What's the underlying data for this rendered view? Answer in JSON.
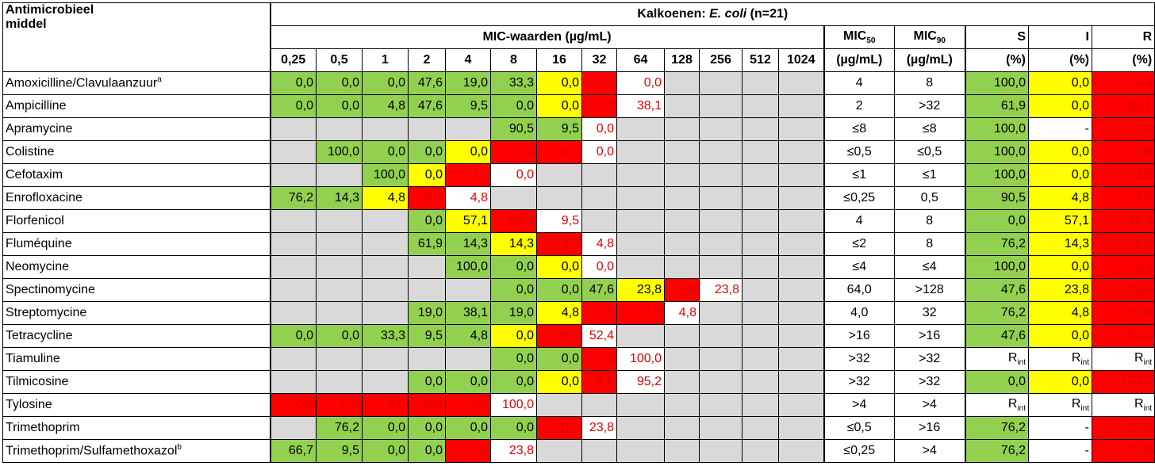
{
  "header": {
    "antimicrobial_line1": "Antimicrobieel",
    "antimicrobial_line2": "middel",
    "title_prefix": "Kalkoenen: ",
    "title_species": "E. coli",
    "title_suffix": " (n=21)",
    "mic_values_label": "MIC-waarden (µg/mL)",
    "mic50_label": "MIC",
    "mic50_sub": "50",
    "mic90_label": "MIC",
    "mic90_sub": "90",
    "unit": "(µg/mL)",
    "s_label": "S",
    "i_label": "I",
    "r_label": "R",
    "pct": "(%)",
    "concentrations": [
      "0,25",
      "0,5",
      "1",
      "2",
      "4",
      "8",
      "16",
      "32",
      "64",
      "128",
      "256",
      "512",
      "1024"
    ]
  },
  "rows": [
    {
      "name": "Amoxicilline/Clavulaanzuur",
      "sup": "a",
      "cells": [
        [
          "0,0",
          "g"
        ],
        [
          "0,0",
          "g"
        ],
        [
          "0,0",
          "g"
        ],
        [
          "47,6",
          "g"
        ],
        [
          "19,0",
          "g"
        ],
        [
          "33,3",
          "g"
        ],
        [
          "0,0",
          "y"
        ],
        [
          "0,0",
          "r"
        ],
        [
          "0,0",
          "wr"
        ],
        [
          "",
          "gr"
        ],
        [
          "",
          "gr"
        ],
        [
          "",
          "gr"
        ],
        [
          "",
          "gr"
        ]
      ],
      "mic50": "4",
      "mic90": "8",
      "s": [
        "100,0",
        "g"
      ],
      "i": [
        "0,0",
        "y"
      ],
      "r": [
        "0,0",
        "r"
      ]
    },
    {
      "name": "Ampicilline",
      "sup": "",
      "cells": [
        [
          "0,0",
          "g"
        ],
        [
          "0,0",
          "g"
        ],
        [
          "4,8",
          "g"
        ],
        [
          "47,6",
          "g"
        ],
        [
          "9,5",
          "g"
        ],
        [
          "0,0",
          "g"
        ],
        [
          "0,0",
          "y"
        ],
        [
          "0,0",
          "r"
        ],
        [
          "38,1",
          "wr"
        ],
        [
          "",
          "gr"
        ],
        [
          "",
          "gr"
        ],
        [
          "",
          "gr"
        ],
        [
          "",
          "gr"
        ]
      ],
      "mic50": "2",
      "mic90": ">32",
      "s": [
        "61,9",
        "g"
      ],
      "i": [
        "0,0",
        "y"
      ],
      "r": [
        "38,1",
        "r"
      ]
    },
    {
      "name": "Apramycine",
      "sup": "",
      "cells": [
        [
          "",
          "gr"
        ],
        [
          "",
          "gr"
        ],
        [
          "",
          "gr"
        ],
        [
          "",
          "gr"
        ],
        [
          "",
          "gr"
        ],
        [
          "90,5",
          "g"
        ],
        [
          "9,5",
          "g"
        ],
        [
          "0,0",
          "wr"
        ],
        [
          "",
          "gr"
        ],
        [
          "",
          "gr"
        ],
        [
          "",
          "gr"
        ],
        [
          "",
          "gr"
        ],
        [
          "",
          "gr"
        ]
      ],
      "mic50": "≤8",
      "mic90": "≤8",
      "s": [
        "100,0",
        "g"
      ],
      "i": [
        "-",
        "w"
      ],
      "r": [
        "0,0",
        "r"
      ]
    },
    {
      "name": "Colistine",
      "sup": "",
      "cells": [
        [
          "",
          "gr"
        ],
        [
          "100,0",
          "g"
        ],
        [
          "0,0",
          "g"
        ],
        [
          "0,0",
          "g"
        ],
        [
          "0,0",
          "y"
        ],
        [
          "0,0",
          "r"
        ],
        [
          "0,0",
          "r"
        ],
        [
          "0,0",
          "wr"
        ],
        [
          "",
          "gr"
        ],
        [
          "",
          "gr"
        ],
        [
          "",
          "gr"
        ],
        [
          "",
          "gr"
        ],
        [
          "",
          "gr"
        ]
      ],
      "mic50": "≤0,5",
      "mic90": "≤0,5",
      "s": [
        "100,0",
        "g"
      ],
      "i": [
        "0,0",
        "y"
      ],
      "r": [
        "0,0",
        "r"
      ]
    },
    {
      "name": "Cefotaxim",
      "sup": "",
      "cells": [
        [
          "",
          "gr"
        ],
        [
          "",
          "gr"
        ],
        [
          "100,0",
          "g"
        ],
        [
          "0,0",
          "y"
        ],
        [
          "0,0",
          "r"
        ],
        [
          "0,0",
          "wr"
        ],
        [
          "",
          "gr"
        ],
        [
          "",
          "gr"
        ],
        [
          "",
          "gr"
        ],
        [
          "",
          "gr"
        ],
        [
          "",
          "gr"
        ],
        [
          "",
          "gr"
        ],
        [
          "",
          "gr"
        ]
      ],
      "mic50": "≤1",
      "mic90": "≤1",
      "s": [
        "100,0",
        "g"
      ],
      "i": [
        "0,0",
        "y"
      ],
      "r": [
        "0,0",
        "r"
      ]
    },
    {
      "name": "Enrofloxacine",
      "sup": "",
      "cells": [
        [
          "76,2",
          "g"
        ],
        [
          "14,3",
          "g"
        ],
        [
          "4,8",
          "y"
        ],
        [
          "0,0",
          "r"
        ],
        [
          "4,8",
          "wr"
        ],
        [
          "",
          "gr"
        ],
        [
          "",
          "gr"
        ],
        [
          "",
          "gr"
        ],
        [
          "",
          "gr"
        ],
        [
          "",
          "gr"
        ],
        [
          "",
          "gr"
        ],
        [
          "",
          "gr"
        ],
        [
          "",
          "gr"
        ]
      ],
      "mic50": "≤0,25",
      "mic90": "0,5",
      "s": [
        "90,5",
        "g"
      ],
      "i": [
        "4,8",
        "y"
      ],
      "r": [
        "4,8",
        "r"
      ]
    },
    {
      "name": "Florfenicol",
      "sup": "",
      "cells": [
        [
          "",
          "gr"
        ],
        [
          "",
          "gr"
        ],
        [
          "",
          "gr"
        ],
        [
          "0,0",
          "g"
        ],
        [
          "57,1",
          "y"
        ],
        [
          "33,3",
          "r"
        ],
        [
          "9,5",
          "wr"
        ],
        [
          "",
          "gr"
        ],
        [
          "",
          "gr"
        ],
        [
          "",
          "gr"
        ],
        [
          "",
          "gr"
        ],
        [
          "",
          "gr"
        ],
        [
          "",
          "gr"
        ]
      ],
      "mic50": "4",
      "mic90": "8",
      "s": [
        "0,0",
        "g"
      ],
      "i": [
        "57,1",
        "y"
      ],
      "r": [
        "42,9",
        "r"
      ]
    },
    {
      "name": "Fluméquine",
      "sup": "",
      "cells": [
        [
          "",
          "gr"
        ],
        [
          "",
          "gr"
        ],
        [
          "",
          "gr"
        ],
        [
          "61,9",
          "g"
        ],
        [
          "14,3",
          "g"
        ],
        [
          "14,3",
          "y"
        ],
        [
          "4,8",
          "r"
        ],
        [
          "4,8",
          "wr"
        ],
        [
          "",
          "gr"
        ],
        [
          "",
          "gr"
        ],
        [
          "",
          "gr"
        ],
        [
          "",
          "gr"
        ],
        [
          "",
          "gr"
        ]
      ],
      "mic50": "≤2",
      "mic90": "8",
      "s": [
        "76,2",
        "g"
      ],
      "i": [
        "14,3",
        "y"
      ],
      "r": [
        "9,5",
        "r"
      ]
    },
    {
      "name": "Neomycine",
      "sup": "",
      "cells": [
        [
          "",
          "gr"
        ],
        [
          "",
          "gr"
        ],
        [
          "",
          "gr"
        ],
        [
          "",
          "gr"
        ],
        [
          "100,0",
          "g"
        ],
        [
          "0,0",
          "g"
        ],
        [
          "0,0",
          "y"
        ],
        [
          "0,0",
          "wr"
        ],
        [
          "",
          "gr"
        ],
        [
          "",
          "gr"
        ],
        [
          "",
          "gr"
        ],
        [
          "",
          "gr"
        ],
        [
          "",
          "gr"
        ]
      ],
      "mic50": "≤4",
      "mic90": "≤4",
      "s": [
        "100,0",
        "g"
      ],
      "i": [
        "0,0",
        "y"
      ],
      "r": [
        "0,0",
        "r"
      ]
    },
    {
      "name": "Spectinomycine",
      "sup": "",
      "cells": [
        [
          "",
          "gr"
        ],
        [
          "",
          "gr"
        ],
        [
          "",
          "gr"
        ],
        [
          "",
          "gr"
        ],
        [
          "",
          "gr"
        ],
        [
          "0,0",
          "g"
        ],
        [
          "0,0",
          "g"
        ],
        [
          "47,6",
          "g"
        ],
        [
          "23,8",
          "y"
        ],
        [
          "4,8",
          "r"
        ],
        [
          "23,8",
          "wr"
        ],
        [
          "",
          "gr"
        ],
        [
          "",
          "gr"
        ]
      ],
      "mic50": "64,0",
      "mic90": ">128",
      "s": [
        "47,6",
        "g"
      ],
      "i": [
        "23,8",
        "y"
      ],
      "r": [
        "28,6",
        "r"
      ]
    },
    {
      "name": "Streptomycine",
      "sup": "",
      "cells": [
        [
          "",
          "gr"
        ],
        [
          "",
          "gr"
        ],
        [
          "",
          "gr"
        ],
        [
          "19,0",
          "g"
        ],
        [
          "38,1",
          "g"
        ],
        [
          "19,0",
          "g"
        ],
        [
          "4,8",
          "y"
        ],
        [
          "9,5",
          "r"
        ],
        [
          "4,8",
          "r"
        ],
        [
          "4,8",
          "wr"
        ],
        [
          "",
          "gr"
        ],
        [
          "",
          "gr"
        ],
        [
          "",
          "gr"
        ]
      ],
      "mic50": "4,0",
      "mic90": "32",
      "s": [
        "76,2",
        "g"
      ],
      "i": [
        "4,8",
        "y"
      ],
      "r": [
        "19,0",
        "r"
      ]
    },
    {
      "name": "Tetracycline",
      "sup": "",
      "cells": [
        [
          "0,0",
          "g"
        ],
        [
          "0,0",
          "g"
        ],
        [
          "33,3",
          "g"
        ],
        [
          "9,5",
          "g"
        ],
        [
          "4,8",
          "g"
        ],
        [
          "0,0",
          "y"
        ],
        [
          "0,0",
          "r"
        ],
        [
          "52,4",
          "wr"
        ],
        [
          "",
          "gr"
        ],
        [
          "",
          "gr"
        ],
        [
          "",
          "gr"
        ],
        [
          "",
          "gr"
        ],
        [
          "",
          "gr"
        ]
      ],
      "mic50": ">16",
      "mic90": ">16",
      "s": [
        "47,6",
        "g"
      ],
      "i": [
        "0,0",
        "y"
      ],
      "r": [
        "52,4",
        "r"
      ]
    },
    {
      "name": "Tiamuline",
      "sup": "",
      "cells": [
        [
          "",
          "gr"
        ],
        [
          "",
          "gr"
        ],
        [
          "",
          "gr"
        ],
        [
          "",
          "gr"
        ],
        [
          "",
          "gr"
        ],
        [
          "0,0",
          "g"
        ],
        [
          "0,0",
          "g"
        ],
        [
          "0,0",
          "r"
        ],
        [
          "100,0",
          "wr"
        ],
        [
          "",
          "gr"
        ],
        [
          "",
          "gr"
        ],
        [
          "",
          "gr"
        ],
        [
          "",
          "gr"
        ]
      ],
      "mic50": ">32",
      "mic90": ">32",
      "s": [
        "R",
        "w",
        "int"
      ],
      "i": [
        "R",
        "w",
        "int"
      ],
      "r": [
        "R",
        "w",
        "int"
      ]
    },
    {
      "name": "Tilmicosine",
      "sup": "",
      "cells": [
        [
          "",
          "gr"
        ],
        [
          "",
          "gr"
        ],
        [
          "",
          "gr"
        ],
        [
          "0,0",
          "g"
        ],
        [
          "0,0",
          "g"
        ],
        [
          "0,0",
          "g"
        ],
        [
          "0,0",
          "y"
        ],
        [
          "4,8",
          "r"
        ],
        [
          "95,2",
          "wr"
        ],
        [
          "",
          "gr"
        ],
        [
          "",
          "gr"
        ],
        [
          "",
          "gr"
        ],
        [
          "",
          "gr"
        ]
      ],
      "mic50": ">32",
      "mic90": ">32",
      "s": [
        "0,0",
        "g"
      ],
      "i": [
        "0,0",
        "y"
      ],
      "r": [
        "100,0",
        "r"
      ]
    },
    {
      "name": "Tylosine",
      "sup": "",
      "cells": [
        [
          "0,0",
          "r"
        ],
        [
          "0,0",
          "r"
        ],
        [
          "0,0",
          "r"
        ],
        [
          "0,0",
          "r"
        ],
        [
          "0,0",
          "r"
        ],
        [
          "100,0",
          "wr"
        ],
        [
          "",
          "gr"
        ],
        [
          "",
          "gr"
        ],
        [
          "",
          "gr"
        ],
        [
          "",
          "gr"
        ],
        [
          "",
          "gr"
        ],
        [
          "",
          "gr"
        ],
        [
          "",
          "gr"
        ]
      ],
      "mic50": ">4",
      "mic90": ">4",
      "s": [
        "R",
        "w",
        "int"
      ],
      "i": [
        "R",
        "w",
        "int"
      ],
      "r": [
        "R",
        "w",
        "int"
      ]
    },
    {
      "name": "Trimethoprim",
      "sup": "",
      "cells": [
        [
          "",
          "gr"
        ],
        [
          "76,2",
          "g"
        ],
        [
          "0,0",
          "g"
        ],
        [
          "0,0",
          "g"
        ],
        [
          "0,0",
          "g"
        ],
        [
          "0,0",
          "g"
        ],
        [
          "0,0",
          "r"
        ],
        [
          "23,8",
          "wr"
        ],
        [
          "",
          "gr"
        ],
        [
          "",
          "gr"
        ],
        [
          "",
          "gr"
        ],
        [
          "",
          "gr"
        ],
        [
          "",
          "gr"
        ]
      ],
      "mic50": "≤0,5",
      "mic90": ">16",
      "s": [
        "76,2",
        "g"
      ],
      "i": [
        "-",
        "w"
      ],
      "r": [
        "23,8",
        "r"
      ]
    },
    {
      "name": "Trimethoprim/Sulfamethoxazol",
      "sup": "b",
      "cells": [
        [
          "66,7",
          "g"
        ],
        [
          "9,5",
          "g"
        ],
        [
          "0,0",
          "g"
        ],
        [
          "0,0",
          "g"
        ],
        [
          "0,0",
          "r"
        ],
        [
          "23,8",
          "wr"
        ],
        [
          "",
          "gr"
        ],
        [
          "",
          "gr"
        ],
        [
          "",
          "gr"
        ],
        [
          "",
          "gr"
        ],
        [
          "",
          "gr"
        ],
        [
          "",
          "gr"
        ],
        [
          "",
          "gr"
        ]
      ],
      "mic50": "≤0,25",
      "mic90": ">4",
      "s": [
        "76,2",
        "g"
      ],
      "i": [
        "-",
        "w"
      ],
      "r": [
        "23,8",
        "r"
      ]
    }
  ],
  "colors": {
    "green": "#92d050",
    "yellow": "#ffff00",
    "red": "#ff0000",
    "grey": "#d9d9d9",
    "red_text": "#e00000"
  }
}
